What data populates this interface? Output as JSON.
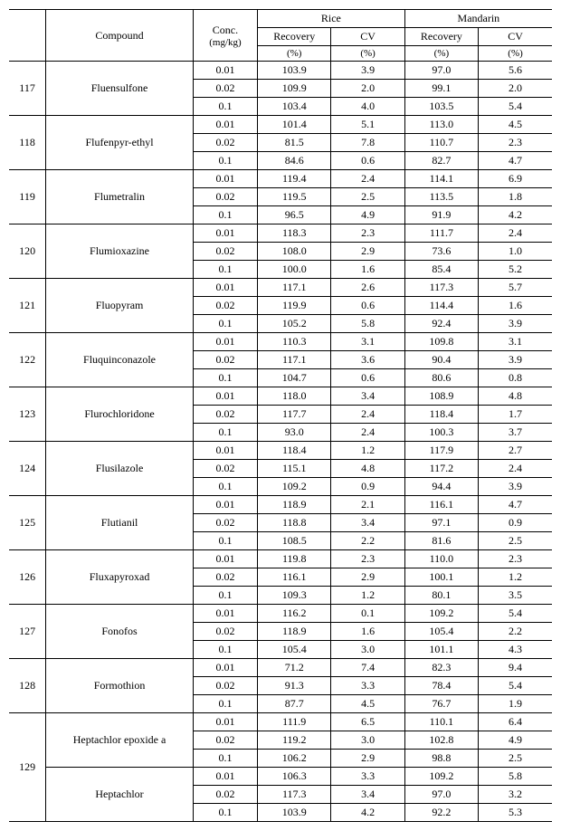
{
  "header": {
    "compound": "Compound",
    "conc": "Conc.",
    "conc_unit": "(mg/kg)",
    "group1": "Rice",
    "group2": "Mandarin",
    "recovery": "Recovery",
    "recovery_unit": "(%)",
    "cv": "CV",
    "cv_unit": "(%)"
  },
  "style": {
    "font_family": "Times New Roman, serif",
    "font_size_pt": 9,
    "header_bg": "#ffffff",
    "border_color": "#000000",
    "text_color": "#000000"
  },
  "rows": [
    {
      "idx": "117",
      "compound": "Fluensulfone",
      "sub": [
        {
          "conc": "0.01",
          "r1": "103.9",
          "c1": "3.9",
          "r2": "97.0",
          "c2": "5.6"
        },
        {
          "conc": "0.02",
          "r1": "109.9",
          "c1": "2.0",
          "r2": "99.1",
          "c2": "2.0"
        },
        {
          "conc": "0.1",
          "r1": "103.4",
          "c1": "4.0",
          "r2": "103.5",
          "c2": "5.4"
        }
      ]
    },
    {
      "idx": "118",
      "compound": "Flufenpyr-ethyl",
      "sub": [
        {
          "conc": "0.01",
          "r1": "101.4",
          "c1": "5.1",
          "r2": "113.0",
          "c2": "4.5"
        },
        {
          "conc": "0.02",
          "r1": "81.5",
          "c1": "7.8",
          "r2": "110.7",
          "c2": "2.3"
        },
        {
          "conc": "0.1",
          "r1": "84.6",
          "c1": "0.6",
          "r2": "82.7",
          "c2": "4.7"
        }
      ]
    },
    {
      "idx": "119",
      "compound": "Flumetralin",
      "sub": [
        {
          "conc": "0.01",
          "r1": "119.4",
          "c1": "2.4",
          "r2": "114.1",
          "c2": "6.9"
        },
        {
          "conc": "0.02",
          "r1": "119.5",
          "c1": "2.5",
          "r2": "113.5",
          "c2": "1.8"
        },
        {
          "conc": "0.1",
          "r1": "96.5",
          "c1": "4.9",
          "r2": "91.9",
          "c2": "4.2"
        }
      ]
    },
    {
      "idx": "120",
      "compound": "Flumioxazine",
      "sub": [
        {
          "conc": "0.01",
          "r1": "118.3",
          "c1": "2.3",
          "r2": "111.7",
          "c2": "2.4"
        },
        {
          "conc": "0.02",
          "r1": "108.0",
          "c1": "2.9",
          "r2": "73.6",
          "c2": "1.0"
        },
        {
          "conc": "0.1",
          "r1": "100.0",
          "c1": "1.6",
          "r2": "85.4",
          "c2": "5.2"
        }
      ]
    },
    {
      "idx": "121",
      "compound": "Fluopyram",
      "sub": [
        {
          "conc": "0.01",
          "r1": "117.1",
          "c1": "2.6",
          "r2": "117.3",
          "c2": "5.7"
        },
        {
          "conc": "0.02",
          "r1": "119.9",
          "c1": "0.6",
          "r2": "114.4",
          "c2": "1.6"
        },
        {
          "conc": "0.1",
          "r1": "105.2",
          "c1": "5.8",
          "r2": "92.4",
          "c2": "3.9"
        }
      ]
    },
    {
      "idx": "122",
      "compound": "Fluquinconazole",
      "sub": [
        {
          "conc": "0.01",
          "r1": "110.3",
          "c1": "3.1",
          "r2": "109.8",
          "c2": "3.1"
        },
        {
          "conc": "0.02",
          "r1": "117.1",
          "c1": "3.6",
          "r2": "90.4",
          "c2": "3.9"
        },
        {
          "conc": "0.1",
          "r1": "104.7",
          "c1": "0.6",
          "r2": "80.6",
          "c2": "0.8"
        }
      ]
    },
    {
      "idx": "123",
      "compound": "Flurochloridone",
      "sub": [
        {
          "conc": "0.01",
          "r1": "118.0",
          "c1": "3.4",
          "r2": "108.9",
          "c2": "4.8"
        },
        {
          "conc": "0.02",
          "r1": "117.7",
          "c1": "2.4",
          "r2": "118.4",
          "c2": "1.7"
        },
        {
          "conc": "0.1",
          "r1": "93.0",
          "c1": "2.4",
          "r2": "100.3",
          "c2": "3.7"
        }
      ]
    },
    {
      "idx": "124",
      "compound": "Flusilazole",
      "sub": [
        {
          "conc": "0.01",
          "r1": "118.4",
          "c1": "1.2",
          "r2": "117.9",
          "c2": "2.7"
        },
        {
          "conc": "0.02",
          "r1": "115.1",
          "c1": "4.8",
          "r2": "117.2",
          "c2": "2.4"
        },
        {
          "conc": "0.1",
          "r1": "109.2",
          "c1": "0.9",
          "r2": "94.4",
          "c2": "3.9"
        }
      ]
    },
    {
      "idx": "125",
      "compound": "Flutianil",
      "sub": [
        {
          "conc": "0.01",
          "r1": "118.9",
          "c1": "2.1",
          "r2": "116.1",
          "c2": "4.7"
        },
        {
          "conc": "0.02",
          "r1": "118.8",
          "c1": "3.4",
          "r2": "97.1",
          "c2": "0.9"
        },
        {
          "conc": "0.1",
          "r1": "108.5",
          "c1": "2.2",
          "r2": "81.6",
          "c2": "2.5"
        }
      ]
    },
    {
      "idx": "126",
      "compound": "Fluxapyroxad",
      "sub": [
        {
          "conc": "0.01",
          "r1": "119.8",
          "c1": "2.3",
          "r2": "110.0",
          "c2": "2.3"
        },
        {
          "conc": "0.02",
          "r1": "116.1",
          "c1": "2.9",
          "r2": "100.1",
          "c2": "1.2"
        },
        {
          "conc": "0.1",
          "r1": "109.3",
          "c1": "1.2",
          "r2": "80.1",
          "c2": "3.5"
        }
      ]
    },
    {
      "idx": "127",
      "compound": "Fonofos",
      "sub": [
        {
          "conc": "0.01",
          "r1": "116.2",
          "c1": "0.1",
          "r2": "109.2",
          "c2": "5.4"
        },
        {
          "conc": "0.02",
          "r1": "118.9",
          "c1": "1.6",
          "r2": "105.4",
          "c2": "2.2"
        },
        {
          "conc": "0.1",
          "r1": "105.4",
          "c1": "3.0",
          "r2": "101.1",
          "c2": "4.3"
        }
      ]
    },
    {
      "idx": "128",
      "compound": "Formothion",
      "sub": [
        {
          "conc": "0.01",
          "r1": "71.2",
          "c1": "7.4",
          "r2": "82.3",
          "c2": "9.4"
        },
        {
          "conc": "0.02",
          "r1": "91.3",
          "c1": "3.3",
          "r2": "78.4",
          "c2": "5.4"
        },
        {
          "conc": "0.1",
          "r1": "87.7",
          "c1": "4.5",
          "r2": "76.7",
          "c2": "1.9"
        }
      ]
    },
    {
      "idx": "129",
      "compounds": [
        {
          "name": "Heptachlor epoxide a",
          "sub": [
            {
              "conc": "0.01",
              "r1": "111.9",
              "c1": "6.5",
              "r2": "110.1",
              "c2": "6.4"
            },
            {
              "conc": "0.02",
              "r1": "119.2",
              "c1": "3.0",
              "r2": "102.8",
              "c2": "4.9"
            },
            {
              "conc": "0.1",
              "r1": "106.2",
              "c1": "2.9",
              "r2": "98.8",
              "c2": "2.5"
            }
          ]
        },
        {
          "name": "Heptachlor",
          "sub": [
            {
              "conc": "0.01",
              "r1": "106.3",
              "c1": "3.3",
              "r2": "109.2",
              "c2": "5.8"
            },
            {
              "conc": "0.02",
              "r1": "117.3",
              "c1": "3.4",
              "r2": "97.0",
              "c2": "3.2"
            },
            {
              "conc": "0.1",
              "r1": "103.9",
              "c1": "4.2",
              "r2": "92.2",
              "c2": "5.3"
            }
          ]
        }
      ]
    }
  ]
}
